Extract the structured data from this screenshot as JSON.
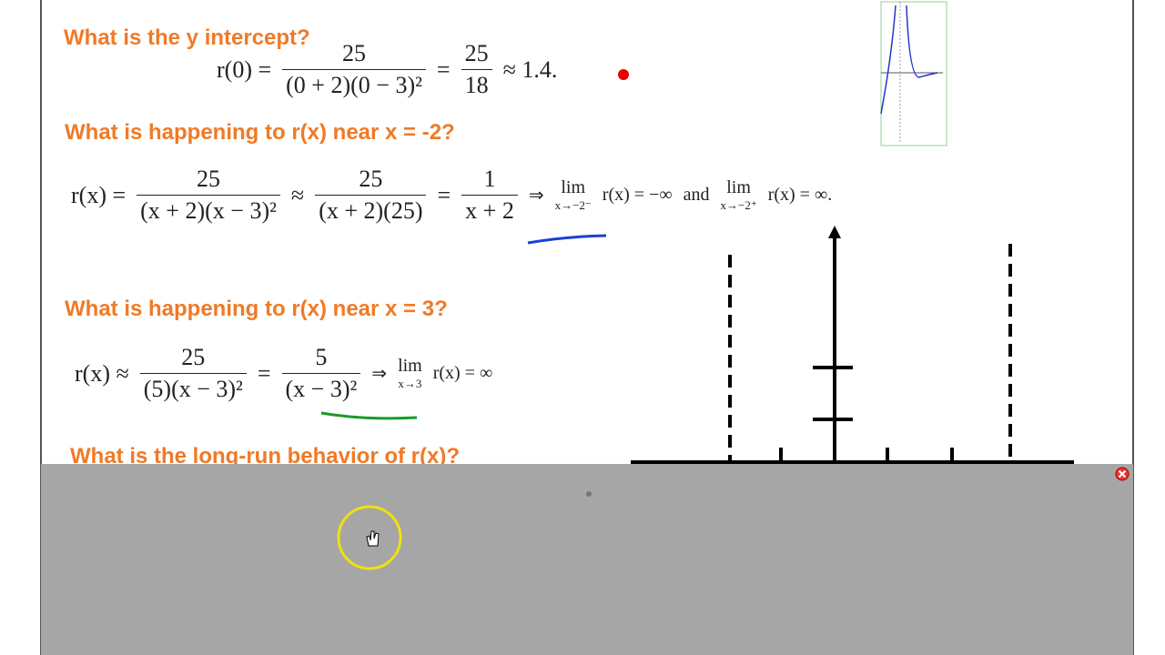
{
  "headings": [
    "What is the y intercept?",
    "What is happening to r(x) near x = -2?",
    "What is happening to r(x) near x = 3?",
    "What is the long-run behavior of r(x)?"
  ],
  "equations": [
    {
      "parts": [
        {
          "text": "r(0) ="
        },
        {
          "num": "25",
          "den": "(0 + 2)(0 − 3)²"
        },
        {
          "text": "="
        },
        {
          "num": "25",
          "den": "18"
        },
        {
          "text": "≈ 1.4."
        }
      ]
    },
    {
      "parts": [
        {
          "text": "r(x) ="
        },
        {
          "num": "25",
          "den": "(x + 2)(x − 3)²"
        },
        {
          "text": "≈"
        },
        {
          "num": "25",
          "den": "(x + 2)(25)"
        },
        {
          "text": "="
        },
        {
          "num": "1",
          "den": "x + 2"
        },
        {
          "text": "⇒"
        },
        {
          "lim": "lim",
          "sub": "x→−2⁻"
        },
        {
          "text": "r(x) = −∞"
        },
        {
          "text": "and"
        },
        {
          "lim": "lim",
          "sub": "x→−2⁺"
        },
        {
          "text": "r(x) = ∞."
        }
      ]
    },
    {
      "parts": [
        {
          "text": "r(x) ≈"
        },
        {
          "num": "25",
          "den": "(5)(x − 3)²"
        },
        {
          "text": "="
        },
        {
          "num": "5",
          "den": "(x − 3)²"
        },
        {
          "text": "⇒"
        },
        {
          "lim": "lim",
          "sub": "x→3"
        },
        {
          "text": "r(x) = ∞"
        }
      ]
    }
  ]
}
